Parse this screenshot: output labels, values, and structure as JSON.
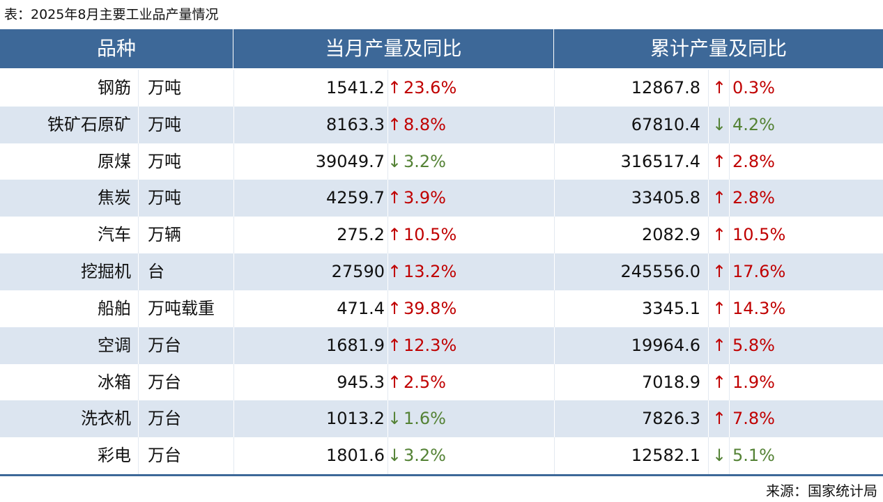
{
  "title": "表：2025年8月主要工业品产量情况",
  "header": [
    "品种",
    "当月产量及同比",
    "累计产量及同比"
  ],
  "rows": [
    {
      "name": "钢筋",
      "unit": "万吨",
      "month": "1541.2",
      "month_arrow": "↑",
      "month_change": "23.6%",
      "total": "12867.8",
      "total_arrow": "↑",
      "total_change": "0.3%"
    },
    {
      "name": "铁矿石原矿",
      "unit": "万吨",
      "month": "8163.3",
      "month_arrow": "↑",
      "month_change": "8.8%",
      "total": "67810.4",
      "total_arrow": "↓",
      "total_change": "4.2%"
    },
    {
      "name": "原煤",
      "unit": "万吨",
      "month": "39049.7",
      "month_arrow": "↓",
      "month_change": "3.2%",
      "total": "316517.4",
      "total_arrow": "↑",
      "total_change": "2.8%"
    },
    {
      "name": "焦炭",
      "unit": "万吨",
      "month": "4259.7",
      "month_arrow": "↑",
      "month_change": "3.9%",
      "total": "33405.8",
      "total_arrow": "↑",
      "total_change": "2.8%"
    },
    {
      "name": "汽车",
      "unit": "万辆",
      "month": "275.2",
      "month_arrow": "↑",
      "month_change": "10.5%",
      "total": "2082.9",
      "total_arrow": "↑",
      "total_change": "10.5%"
    },
    {
      "name": "挖掘机",
      "unit": "台",
      "month": "27590",
      "month_arrow": "↑",
      "month_change": "13.2%",
      "total": "245556.0",
      "total_arrow": "↑",
      "total_change": "17.6%"
    },
    {
      "name": "船舶",
      "unit": "万吨载重",
      "month": "471.4",
      "month_arrow": "↑",
      "month_change": "39.8%",
      "total": "3345.1",
      "total_arrow": "↑",
      "total_change": "14.3%"
    },
    {
      "name": "空调",
      "unit": "万台",
      "month": "1681.9",
      "month_arrow": "↑",
      "month_change": "12.3%",
      "total": "19964.6",
      "total_arrow": "↑",
      "total_change": "5.8%"
    },
    {
      "name": "冰箱",
      "unit": "万台",
      "month": "945.3",
      "month_arrow": "↑",
      "month_change": "2.5%",
      "total": "7018.9",
      "total_arrow": "↑",
      "total_change": "1.9%"
    },
    {
      "name": "洗衣机",
      "unit": "万台",
      "month": "1013.2",
      "month_arrow": "↓",
      "month_change": "1.6%",
      "total": "7826.3",
      "total_arrow": "↑",
      "total_change": "7.8%"
    },
    {
      "name": "彩电",
      "unit": "万台",
      "month": "1801.6",
      "month_arrow": "↓",
      "month_change": "3.2%",
      "total": "12582.1",
      "total_arrow": "↓",
      "total_change": "5.1%"
    }
  ],
  "source": "来源：国家统计局"
}
